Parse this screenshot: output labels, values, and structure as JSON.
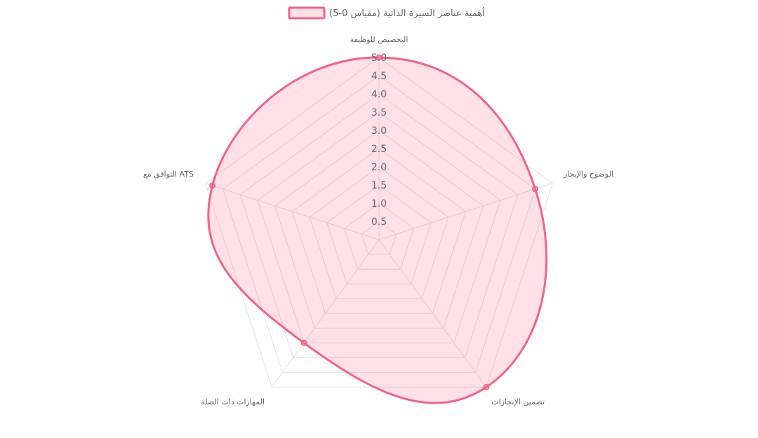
{
  "chart_data": {
    "type": "radar",
    "legend": {
      "label": "أهمية عناصر السيرة الذاتية (مقياس 0-5)",
      "position": "top"
    },
    "labels": [
      "التخصيص للوظيفة",
      "الوضوح والإيجاز",
      "تضمين الإنجازات",
      "المهارات ذات الصلة",
      "التوافق مع ATS"
    ],
    "series": [
      {
        "name": "أهمية عناصر السيرة الذاتية (مقياس 0-5)",
        "values": [
          5,
          4.5,
          5,
          3.5,
          4.8
        ]
      }
    ],
    "r_range": [
      0,
      5
    ],
    "r_ticks": [
      "0.5",
      "1.0",
      "1.5",
      "2.0",
      "2.5",
      "3.0",
      "3.5",
      "4.0",
      "4.5",
      "5.0"
    ],
    "r_tick_values": [
      0.5,
      1,
      1.5,
      2,
      2.5,
      3,
      3.5,
      4,
      4.5,
      5
    ],
    "grid": true,
    "colors": {
      "line": "#f06488",
      "fill": "rgba(255,99,132,0.2)",
      "grid": "#e0e0e0",
      "text": "#666666"
    }
  }
}
